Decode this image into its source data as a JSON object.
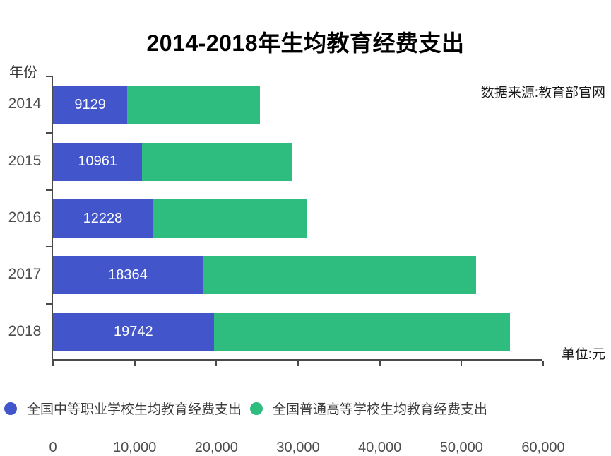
{
  "title": "2014-2018年生均教育经费支出",
  "y_axis_title": "年份",
  "source_note": "数据来源:教育部官网",
  "unit_note": "单位:元",
  "colors": {
    "vocational_blue": "#4355CB",
    "higher_ed_green": "#2EBD7F",
    "axis": "#4A4A4A",
    "tick_text": "#4D4D4D",
    "bar_value_text": "#FFFFFF",
    "title_text": "#000000"
  },
  "legend": {
    "items": [
      {
        "label": "全国中等职业学校生均教育经费支出",
        "color": "#4355CB"
      },
      {
        "label": "全国普通高等学校生均教育经费支出",
        "color": "#2EBD7F"
      }
    ]
  },
  "chart_data": {
    "type": "bar",
    "orientation": "horizontal",
    "stacked": true,
    "title": "2014-2018年生均教育经费支出",
    "ylabel": "年份",
    "xlabel": "单位:元",
    "categories": [
      "2014",
      "2015",
      "2016",
      "2017",
      "2018"
    ],
    "series": [
      {
        "name": "全国中等职业学校生均教育经费支出",
        "color": "#4355CB",
        "values": [
          9129,
          10961,
          12228,
          18364,
          19742
        ],
        "data_labels": [
          "9129",
          "10961",
          "12228",
          "18364",
          "19742"
        ]
      },
      {
        "name": "全国普通高等学校生均教育经费支出",
        "color": "#2EBD7F",
        "values": [
          16300,
          18350,
          18900,
          33550,
          36350
        ],
        "values_estimated": true
      }
    ],
    "xlim": [
      0,
      60000
    ],
    "x_ticks": [
      {
        "value": 0,
        "label": "0"
      },
      {
        "value": 10000,
        "label": "10,000"
      },
      {
        "value": 20000,
        "label": "20,000"
      },
      {
        "value": 30000,
        "label": "30,000"
      },
      {
        "value": 40000,
        "label": "40,000"
      },
      {
        "value": 50000,
        "label": "50,000"
      },
      {
        "value": 60000,
        "label": "60,000"
      }
    ],
    "grid": false,
    "legend_position": "bottom"
  }
}
